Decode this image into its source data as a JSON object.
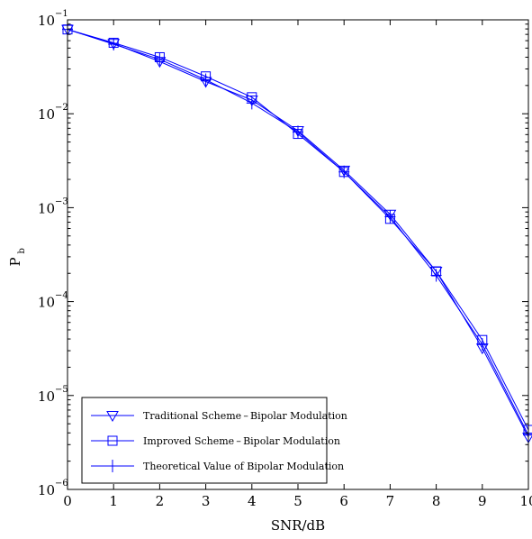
{
  "chart_data": {
    "type": "line",
    "title": "",
    "xlabel": "SNR/dB",
    "ylabel": "P",
    "ylabel_sub": "b",
    "xlim": [
      0,
      10
    ],
    "ylim": [
      1e-06,
      0.1
    ],
    "yscale": "log",
    "x_ticks": [
      "0",
      "1",
      "2",
      "3",
      "4",
      "5",
      "6",
      "7",
      "8",
      "9",
      "10"
    ],
    "y_ticks": [
      {
        "base": "10",
        "exp": "−1",
        "value": 0.1
      },
      {
        "base": "10",
        "exp": "−2",
        "value": 0.01
      },
      {
        "base": "10",
        "exp": "−3",
        "value": 0.001
      },
      {
        "base": "10",
        "exp": "−4",
        "value": 0.0001
      },
      {
        "base": "10",
        "exp": "−5",
        "value": 1e-05
      },
      {
        "base": "10",
        "exp": "−6",
        "value": 1e-06
      }
    ],
    "grid": false,
    "legend_position": "bottom-left",
    "line_color": "#0000ff",
    "x": [
      0,
      1,
      2,
      3,
      4,
      5,
      6,
      7,
      8,
      9,
      10
    ],
    "series": [
      {
        "name": "Traditional Scheme – Bipolar Modulation",
        "marker": "triangle-down",
        "values": [
          0.079,
          0.056,
          0.036,
          0.022,
          0.014,
          0.0066,
          0.0025,
          0.00085,
          0.00021,
          3.2e-05,
          3.6e-06
        ]
      },
      {
        "name": "Improved Scheme – Bipolar Modulation",
        "marker": "square",
        "values": [
          0.079,
          0.057,
          0.04,
          0.025,
          0.015,
          0.0061,
          0.0024,
          0.00076,
          0.00021,
          3.9e-05,
          4.3e-06
        ]
      },
      {
        "name": "Theoretical Value of Bipolar Modulation",
        "marker": "plus",
        "values": [
          0.079,
          0.055,
          0.038,
          0.023,
          0.013,
          0.0064,
          0.0024,
          0.0008,
          0.00019,
          3.5e-05,
          3.8e-06
        ]
      }
    ]
  }
}
